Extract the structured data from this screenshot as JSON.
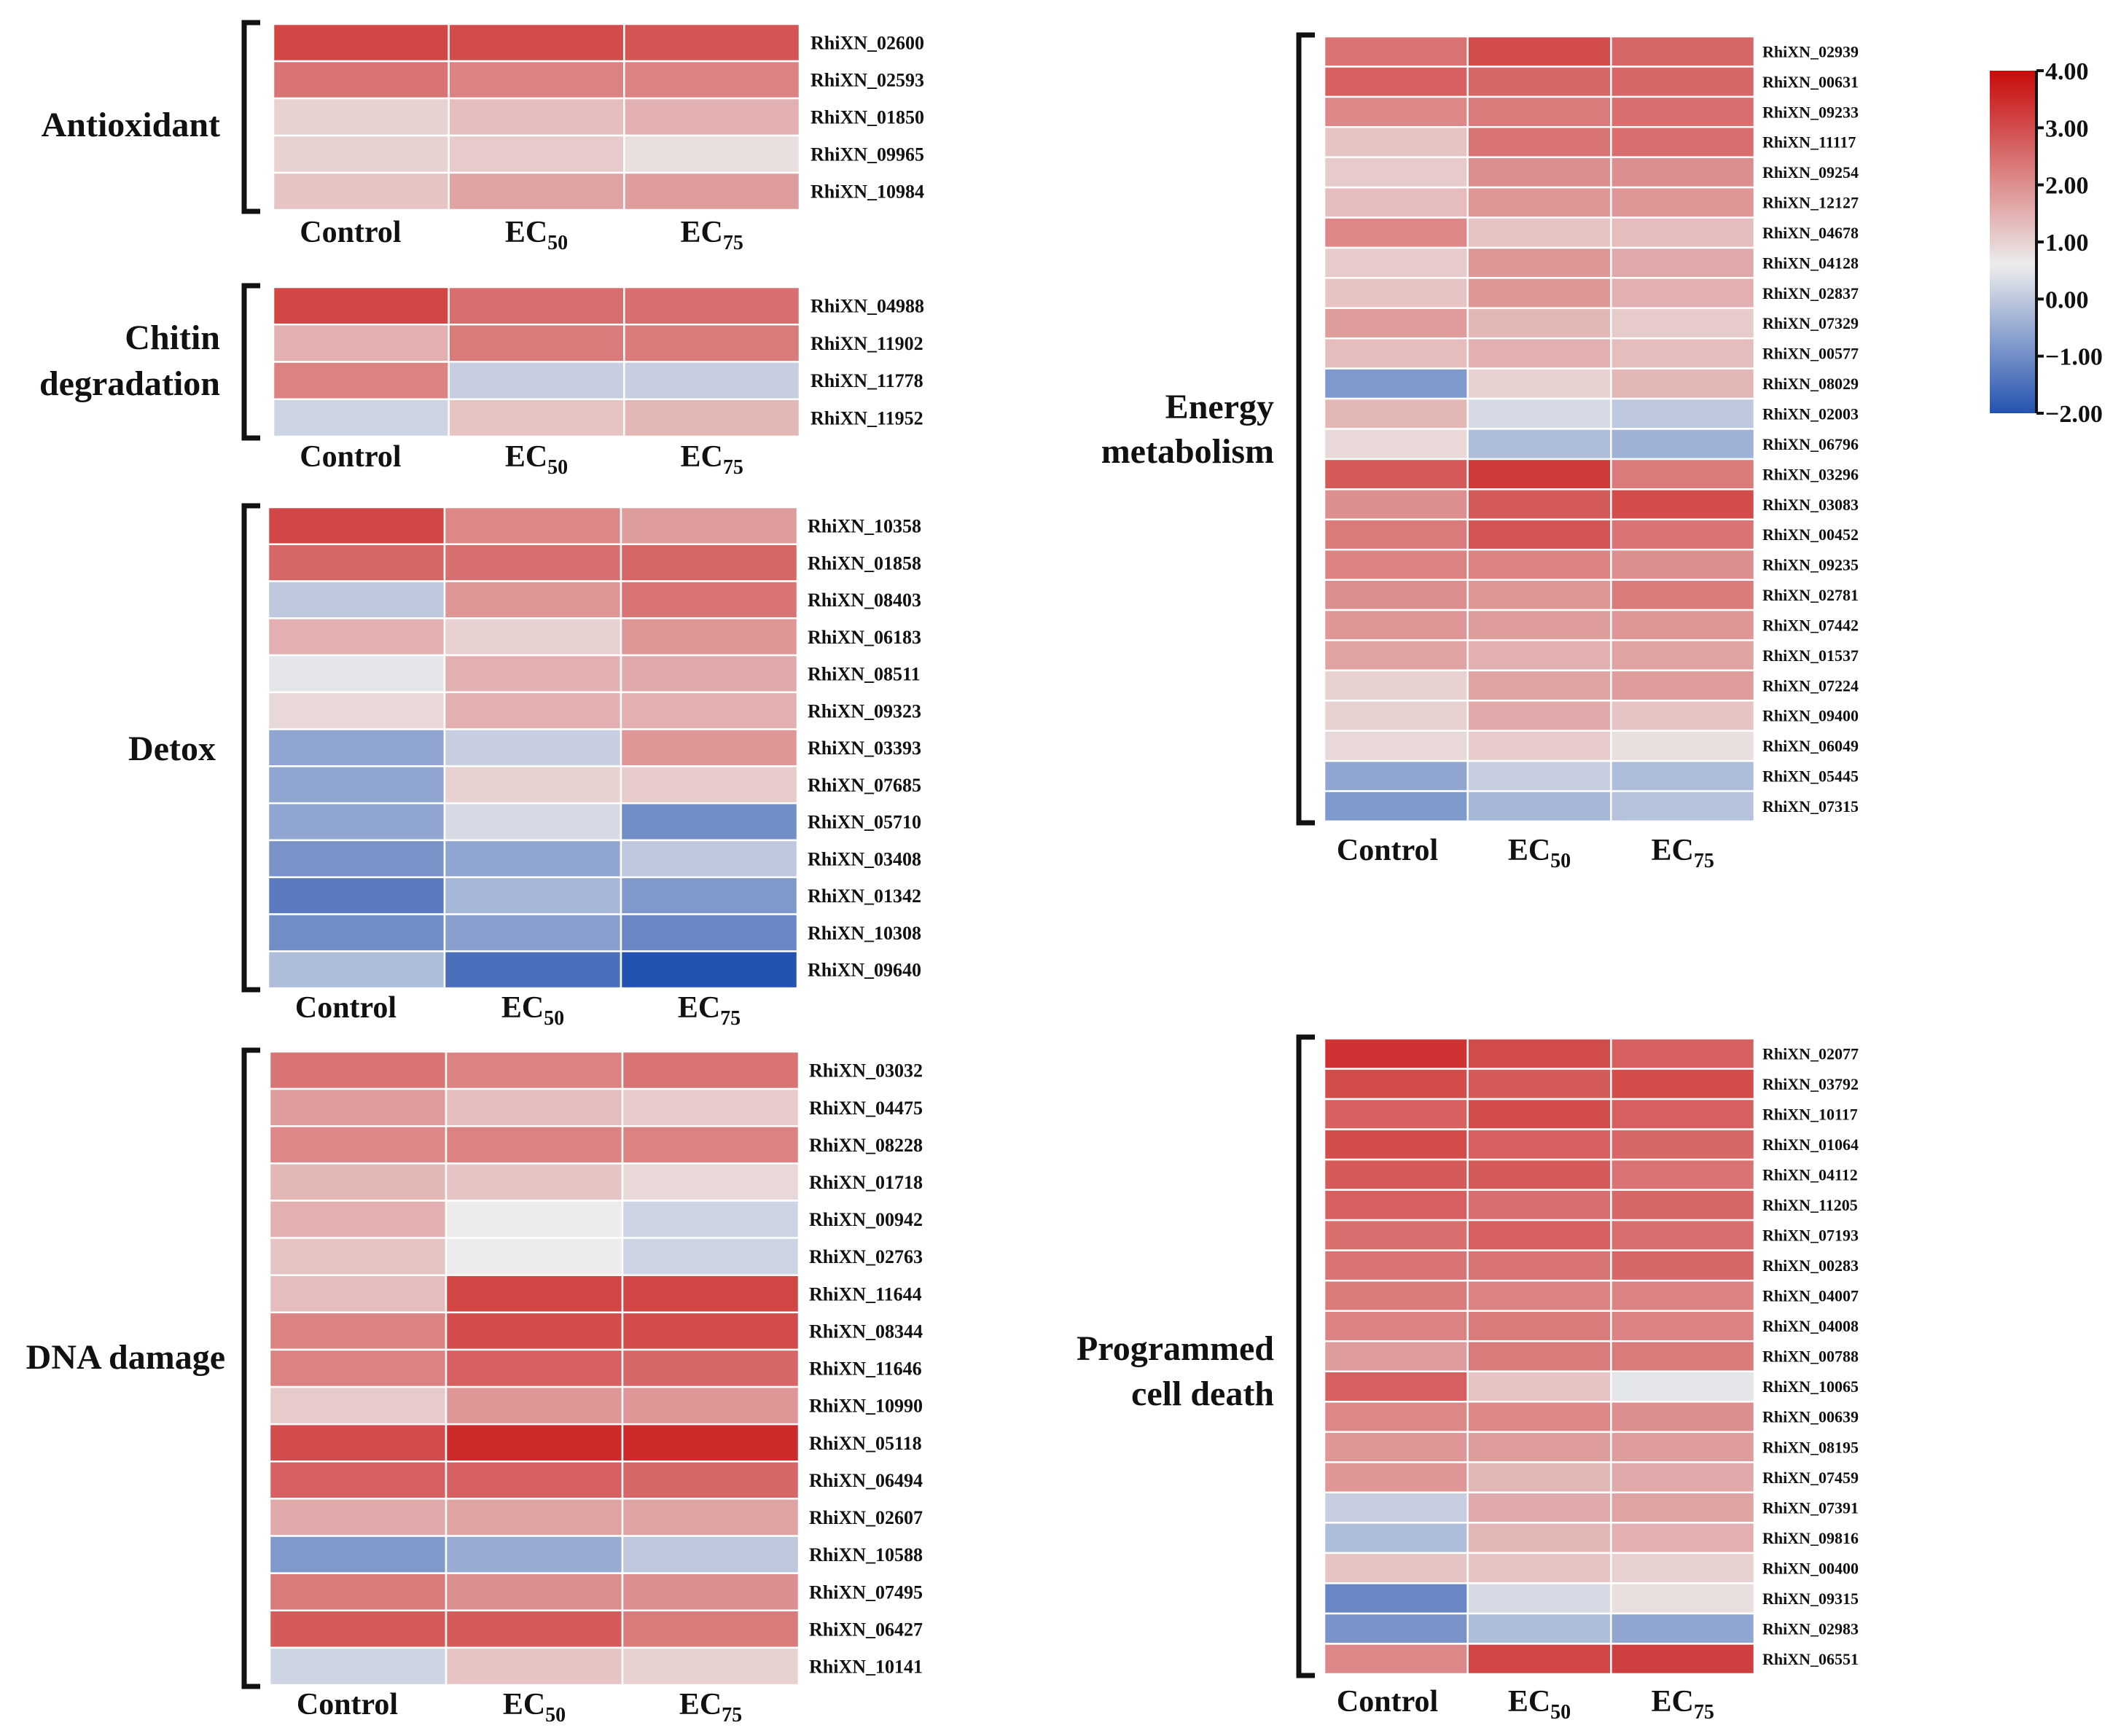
{
  "chart_data": {
    "type": "heatmap",
    "columns": [
      "Control",
      "EC50",
      "EC75"
    ],
    "column_labels": [
      {
        "main": "Control",
        "sub": ""
      },
      {
        "main": "EC",
        "sub": "50"
      },
      {
        "main": "EC",
        "sub": "75"
      }
    ],
    "colorbar": {
      "range": [
        -2,
        4
      ],
      "ticks": [
        "4.00",
        "3.00",
        "2.00",
        "1.00",
        "0.00",
        "−1.00",
        "−2.00"
      ],
      "tick_values": [
        4,
        3,
        2,
        1,
        0,
        -1,
        -2
      ],
      "colors": {
        "low": "#2452b0",
        "mid": "#ececec",
        "high": "#c80a0a"
      },
      "mid_value": 0.6
    },
    "groups": [
      {
        "name": "Antioxidant",
        "label_lines": [
          "Antioxidant"
        ],
        "genes": [
          {
            "id": "RhiXN_02600",
            "values": [
              3.1,
              3.0,
              2.9
            ]
          },
          {
            "id": "RhiXN_02593",
            "values": [
              2.4,
              2.2,
              2.2
            ]
          },
          {
            "id": "RhiXN_01850",
            "values": [
              1.0,
              1.3,
              1.5
            ]
          },
          {
            "id": "RhiXN_09965",
            "values": [
              1.0,
              1.1,
              0.8
            ]
          },
          {
            "id": "RhiXN_10984",
            "values": [
              1.2,
              1.7,
              1.8
            ]
          }
        ]
      },
      {
        "name": "Chitin degradation",
        "label_lines": [
          "Chitin",
          "degradation"
        ],
        "genes": [
          {
            "id": "RhiXN_04988",
            "values": [
              3.1,
              2.5,
              2.5
            ]
          },
          {
            "id": "RhiXN_11902",
            "values": [
              1.5,
              2.3,
              2.3
            ]
          },
          {
            "id": "RhiXN_11778",
            "values": [
              2.2,
              0.1,
              0.1
            ]
          },
          {
            "id": "RhiXN_11952",
            "values": [
              0.2,
              1.2,
              1.4
            ]
          }
        ]
      },
      {
        "name": "Detox",
        "label_lines": [
          "Detox"
        ],
        "genes": [
          {
            "id": "RhiXN_10358",
            "values": [
              3.1,
              2.1,
              1.8
            ]
          },
          {
            "id": "RhiXN_01858",
            "values": [
              2.6,
              2.5,
              2.6
            ]
          },
          {
            "id": "RhiXN_08403",
            "values": [
              0.0,
              1.9,
              2.4
            ]
          },
          {
            "id": "RhiXN_06183",
            "values": [
              1.5,
              1.0,
              1.9
            ]
          },
          {
            "id": "RhiXN_08511",
            "values": [
              0.5,
              1.5,
              1.6
            ]
          },
          {
            "id": "RhiXN_09323",
            "values": [
              0.9,
              1.5,
              1.5
            ]
          },
          {
            "id": "RhiXN_03393",
            "values": [
              -0.6,
              0.1,
              1.9
            ]
          },
          {
            "id": "RhiXN_07685",
            "values": [
              -0.6,
              1.0,
              1.1
            ]
          },
          {
            "id": "RhiXN_05710",
            "values": [
              -0.6,
              0.3,
              -1.0
            ]
          },
          {
            "id": "RhiXN_03408",
            "values": [
              -0.9,
              -0.6,
              0.0
            ]
          },
          {
            "id": "RhiXN_01342",
            "values": [
              -1.3,
              -0.3,
              -0.8
            ]
          },
          {
            "id": "RhiXN_10308",
            "values": [
              -1.0,
              -0.7,
              -1.1
            ]
          },
          {
            "id": "RhiXN_09640",
            "values": [
              -0.2,
              -1.5,
              -2.0
            ]
          }
        ]
      },
      {
        "name": "DNA damage",
        "label_lines": [
          "DNA damage"
        ],
        "genes": [
          {
            "id": "RhiXN_03032",
            "values": [
              2.4,
              2.2,
              2.4
            ]
          },
          {
            "id": "RhiXN_04475",
            "values": [
              1.8,
              1.3,
              1.1
            ]
          },
          {
            "id": "RhiXN_08228",
            "values": [
              2.1,
              2.2,
              2.2
            ]
          },
          {
            "id": "RhiXN_01718",
            "values": [
              1.4,
              1.2,
              0.9
            ]
          },
          {
            "id": "RhiXN_00942",
            "values": [
              1.5,
              0.6,
              0.2
            ]
          },
          {
            "id": "RhiXN_02763",
            "values": [
              1.2,
              0.6,
              0.2
            ]
          },
          {
            "id": "RhiXN_11644",
            "values": [
              1.3,
              3.1,
              3.1
            ]
          },
          {
            "id": "RhiXN_08344",
            "values": [
              2.2,
              3.0,
              3.0
            ]
          },
          {
            "id": "RhiXN_11646",
            "values": [
              2.2,
              2.7,
              2.6
            ]
          },
          {
            "id": "RhiXN_10990",
            "values": [
              1.1,
              1.9,
              1.9
            ]
          },
          {
            "id": "RhiXN_05118",
            "values": [
              3.0,
              3.5,
              3.5
            ]
          },
          {
            "id": "RhiXN_06494",
            "values": [
              2.7,
              2.7,
              2.6
            ]
          },
          {
            "id": "RhiXN_02607",
            "values": [
              1.6,
              1.7,
              1.7
            ]
          },
          {
            "id": "RhiXN_10588",
            "values": [
              -0.8,
              -0.5,
              0.0
            ]
          },
          {
            "id": "RhiXN_07495",
            "values": [
              2.3,
              2.0,
              2.0
            ]
          },
          {
            "id": "RhiXN_06427",
            "values": [
              2.8,
              2.8,
              2.3
            ]
          },
          {
            "id": "RhiXN_10141",
            "values": [
              0.2,
              1.2,
              1.0
            ]
          }
        ]
      },
      {
        "name": "Energy metabolism",
        "label_lines": [
          "Energy",
          "metabolism"
        ],
        "genes": [
          {
            "id": "RhiXN_02939",
            "values": [
              2.4,
              3.0,
              2.6
            ]
          },
          {
            "id": "RhiXN_00631",
            "values": [
              2.7,
              2.6,
              2.6
            ]
          },
          {
            "id": "RhiXN_09233",
            "values": [
              2.1,
              2.3,
              2.5
            ]
          },
          {
            "id": "RhiXN_11117",
            "values": [
              1.2,
              2.4,
              2.5
            ]
          },
          {
            "id": "RhiXN_09254",
            "values": [
              1.1,
              2.0,
              2.0
            ]
          },
          {
            "id": "RhiXN_12127",
            "values": [
              1.3,
              1.9,
              1.9
            ]
          },
          {
            "id": "RhiXN_04678",
            "values": [
              2.1,
              1.2,
              1.3
            ]
          },
          {
            "id": "RhiXN_04128",
            "values": [
              1.1,
              1.9,
              1.6
            ]
          },
          {
            "id": "RhiXN_02837",
            "values": [
              1.2,
              1.9,
              1.5
            ]
          },
          {
            "id": "RhiXN_07329",
            "values": [
              1.8,
              1.4,
              1.1
            ]
          },
          {
            "id": "RhiXN_00577",
            "values": [
              1.3,
              1.5,
              1.3
            ]
          },
          {
            "id": "RhiXN_08029",
            "values": [
              -0.8,
              1.0,
              1.4
            ]
          },
          {
            "id": "RhiXN_02003",
            "values": [
              1.4,
              0.3,
              0.0
            ]
          },
          {
            "id": "RhiXN_06796",
            "values": [
              0.9,
              -0.2,
              -0.4
            ]
          },
          {
            "id": "RhiXN_03296",
            "values": [
              2.8,
              3.3,
              2.3
            ]
          },
          {
            "id": "RhiXN_03083",
            "values": [
              2.0,
              2.8,
              3.0
            ]
          },
          {
            "id": "RhiXN_00452",
            "values": [
              2.3,
              2.9,
              2.4
            ]
          },
          {
            "id": "RhiXN_09235",
            "values": [
              2.2,
              2.2,
              2.0
            ]
          },
          {
            "id": "RhiXN_02781",
            "values": [
              2.0,
              1.9,
              2.3
            ]
          },
          {
            "id": "RhiXN_07442",
            "values": [
              1.9,
              1.8,
              1.9
            ]
          },
          {
            "id": "RhiXN_01537",
            "values": [
              1.7,
              1.5,
              1.7
            ]
          },
          {
            "id": "RhiXN_07224",
            "values": [
              1.0,
              1.7,
              1.8
            ]
          },
          {
            "id": "RhiXN_09400",
            "values": [
              1.0,
              1.6,
              1.2
            ]
          },
          {
            "id": "RhiXN_06049",
            "values": [
              0.9,
              1.1,
              0.8
            ]
          },
          {
            "id": "RhiXN_05445",
            "values": [
              -0.6,
              0.1,
              -0.2
            ]
          },
          {
            "id": "RhiXN_07315",
            "values": [
              -0.8,
              -0.3,
              -0.1
            ]
          }
        ]
      },
      {
        "name": "Programmed cell death",
        "label_lines": [
          "Programmed",
          "cell death"
        ],
        "genes": [
          {
            "id": "RhiXN_02077",
            "values": [
              3.4,
              3.0,
              2.7
            ]
          },
          {
            "id": "RhiXN_03792",
            "values": [
              3.0,
              2.8,
              3.0
            ]
          },
          {
            "id": "RhiXN_10117",
            "values": [
              2.7,
              3.0,
              2.7
            ]
          },
          {
            "id": "RhiXN_01064",
            "values": [
              3.0,
              2.7,
              2.6
            ]
          },
          {
            "id": "RhiXN_04112",
            "values": [
              2.8,
              2.8,
              2.4
            ]
          },
          {
            "id": "RhiXN_11205",
            "values": [
              2.7,
              2.5,
              2.6
            ]
          },
          {
            "id": "RhiXN_07193",
            "values": [
              2.5,
              2.7,
              2.5
            ]
          },
          {
            "id": "RhiXN_00283",
            "values": [
              2.4,
              2.4,
              2.6
            ]
          },
          {
            "id": "RhiXN_04007",
            "values": [
              2.3,
              2.2,
              2.2
            ]
          },
          {
            "id": "RhiXN_04008",
            "values": [
              2.2,
              2.3,
              2.2
            ]
          },
          {
            "id": "RhiXN_00788",
            "values": [
              1.8,
              2.3,
              2.3
            ]
          },
          {
            "id": "RhiXN_10065",
            "values": [
              2.7,
              1.2,
              0.5
            ]
          },
          {
            "id": "RhiXN_00639",
            "values": [
              2.1,
              2.1,
              2.0
            ]
          },
          {
            "id": "RhiXN_08195",
            "values": [
              1.9,
              1.8,
              1.8
            ]
          },
          {
            "id": "RhiXN_07459",
            "values": [
              1.9,
              1.4,
              1.6
            ]
          },
          {
            "id": "RhiXN_07391",
            "values": [
              0.1,
              1.6,
              1.7
            ]
          },
          {
            "id": "RhiXN_09816",
            "values": [
              -0.2,
              1.4,
              1.5
            ]
          },
          {
            "id": "RhiXN_00400",
            "values": [
              1.2,
              1.2,
              1.0
            ]
          },
          {
            "id": "RhiXN_09315",
            "values": [
              -1.1,
              0.3,
              0.8
            ]
          },
          {
            "id": "RhiXN_02983",
            "values": [
              -0.9,
              -0.2,
              -0.6
            ]
          },
          {
            "id": "RhiXN_06551",
            "values": [
              2.1,
              3.1,
              3.2
            ]
          }
        ]
      }
    ]
  }
}
